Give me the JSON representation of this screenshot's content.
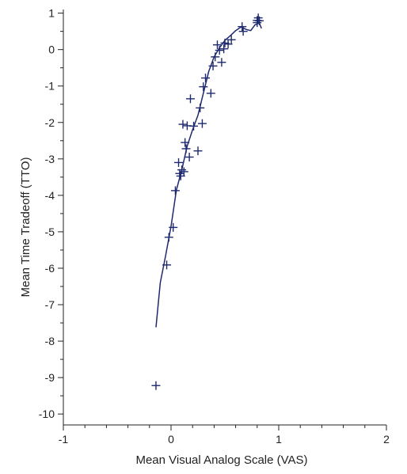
{
  "chart_data": {
    "type": "scatter",
    "xlabel": "Mean Visual Analog Scale (VAS)",
    "ylabel": "Mean Time Tradeoff (TTO)",
    "xlim": [
      -1,
      2
    ],
    "ylim": [
      -10.3,
      1.1
    ],
    "x_ticks": [
      -1,
      0,
      1,
      2
    ],
    "y_ticks": [
      -10,
      -9,
      -8,
      -7,
      -6,
      -5,
      -4,
      -3,
      -2,
      -1,
      0,
      1
    ],
    "x_tick_labels": [
      "-1",
      "0",
      "1",
      "2"
    ],
    "y_tick_labels": [
      "-10",
      "-9",
      "-8",
      "-7",
      "-6",
      "-5",
      "-4",
      "-3",
      "-2",
      "-1",
      "0",
      "1"
    ],
    "grid": false,
    "legend": "none",
    "marker_color": "#1f2a6e",
    "line_color": "#1f2a6e",
    "series": [
      {
        "type": "scatter",
        "marker": "plus",
        "points": [
          [
            -0.14,
            -9.22
          ],
          [
            -0.04,
            -5.91
          ],
          [
            -0.02,
            -5.15
          ],
          [
            0.02,
            -4.88
          ],
          [
            0.04,
            -3.87
          ],
          [
            0.07,
            -3.1
          ],
          [
            0.08,
            -3.4
          ],
          [
            0.09,
            -3.47
          ],
          [
            0.1,
            -3.3
          ],
          [
            0.11,
            -2.05
          ],
          [
            0.12,
            -3.35
          ],
          [
            0.13,
            -2.55
          ],
          [
            0.14,
            -2.72
          ],
          [
            0.15,
            -2.09
          ],
          [
            0.17,
            -2.95
          ],
          [
            0.18,
            -1.35
          ],
          [
            0.21,
            -2.1
          ],
          [
            0.25,
            -2.78
          ],
          [
            0.27,
            -1.6
          ],
          [
            0.29,
            -2.03
          ],
          [
            0.3,
            -1.02
          ],
          [
            0.32,
            -0.78
          ],
          [
            0.37,
            -1.2
          ],
          [
            0.39,
            -0.45
          ],
          [
            0.41,
            -0.2
          ],
          [
            0.43,
            0.13
          ],
          [
            0.45,
            -0.02
          ],
          [
            0.47,
            -0.35
          ],
          [
            0.49,
            0.02
          ],
          [
            0.5,
            0.18
          ],
          [
            0.53,
            0.15
          ],
          [
            0.56,
            0.27
          ],
          [
            0.66,
            0.63
          ],
          [
            0.67,
            0.5
          ],
          [
            0.8,
            0.74
          ],
          [
            0.8,
            0.8
          ],
          [
            0.81,
            0.87
          ],
          [
            0.82,
            0.79
          ]
        ]
      },
      {
        "type": "line",
        "points": [
          [
            -0.14,
            -7.62
          ],
          [
            -0.1,
            -6.4
          ],
          [
            -0.05,
            -5.65
          ],
          [
            0.0,
            -4.85
          ],
          [
            0.05,
            -3.85
          ],
          [
            0.1,
            -3.3
          ],
          [
            0.15,
            -2.65
          ],
          [
            0.2,
            -2.2
          ],
          [
            0.25,
            -1.8
          ],
          [
            0.3,
            -1.2
          ],
          [
            0.35,
            -0.6
          ],
          [
            0.4,
            -0.2
          ],
          [
            0.45,
            0.05
          ],
          [
            0.5,
            0.25
          ],
          [
            0.55,
            0.38
          ],
          [
            0.6,
            0.52
          ],
          [
            0.65,
            0.62
          ],
          [
            0.7,
            0.55
          ],
          [
            0.74,
            0.52
          ],
          [
            0.78,
            0.68
          ],
          [
            0.82,
            0.73
          ],
          [
            0.84,
            0.58
          ]
        ]
      }
    ]
  }
}
